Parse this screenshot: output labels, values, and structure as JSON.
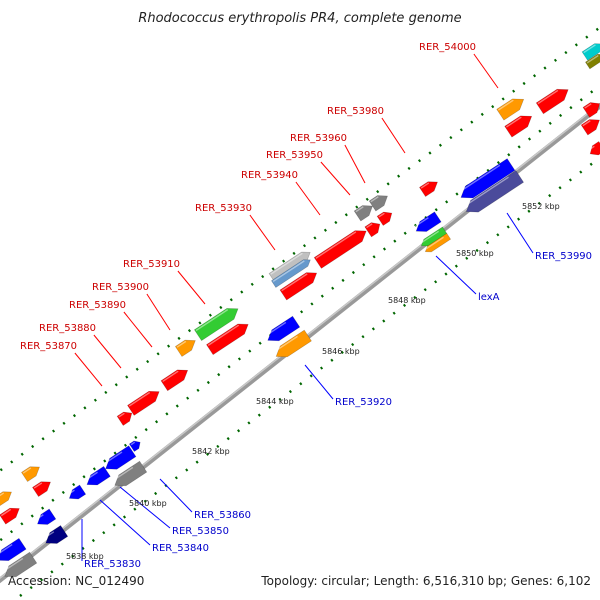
{
  "title": "Rhodococcus erythropolis PR4, complete genome",
  "footer": {
    "accession": "Accession: NC_012490",
    "summary": "Topology: circular; Length: 6,516,310 bp; Genes: 6,102"
  },
  "colors": {
    "red": "#ff0000",
    "blue": "#0000ff",
    "orange": "#ff9900",
    "green": "#33cc33",
    "gray": "#808080",
    "slate": "#4b4b9b",
    "navy": "#000080",
    "steelblue": "#6699cc",
    "silver": "#c0c0c0",
    "cyan": "#00cccc",
    "olive": "#808000",
    "backbone": "#999999",
    "dots": "#006600",
    "leader_red": "#ff0000",
    "leader_blue": "#0000ff",
    "label_red": "#cc0000",
    "label_blue": "#0000cc"
  },
  "ticks": [
    {
      "label": "5838 kbp"
    },
    {
      "label": "5840 kbp"
    },
    {
      "label": "5842 kbp"
    },
    {
      "label": "5844 kbp"
    },
    {
      "label": "5846 kbp"
    },
    {
      "label": "5848 kbp"
    },
    {
      "label": "5850 kbp"
    },
    {
      "label": "5852 kbp"
    }
  ],
  "labels_forward": [
    {
      "text": "RER_53870"
    },
    {
      "text": "RER_53880"
    },
    {
      "text": "RER_53890"
    },
    {
      "text": "RER_53900"
    },
    {
      "text": "RER_53910"
    },
    {
      "text": "RER_53930"
    },
    {
      "text": "RER_53940"
    },
    {
      "text": "RER_53950"
    },
    {
      "text": "RER_53960"
    },
    {
      "text": "RER_53980"
    },
    {
      "text": "RER_54000"
    }
  ],
  "labels_reverse": [
    {
      "text": "RER_53830"
    },
    {
      "text": "RER_53840"
    },
    {
      "text": "RER_53850"
    },
    {
      "text": "RER_53860"
    },
    {
      "text": "RER_53920"
    },
    {
      "text": "lexA"
    },
    {
      "text": "RER_53990"
    }
  ]
}
